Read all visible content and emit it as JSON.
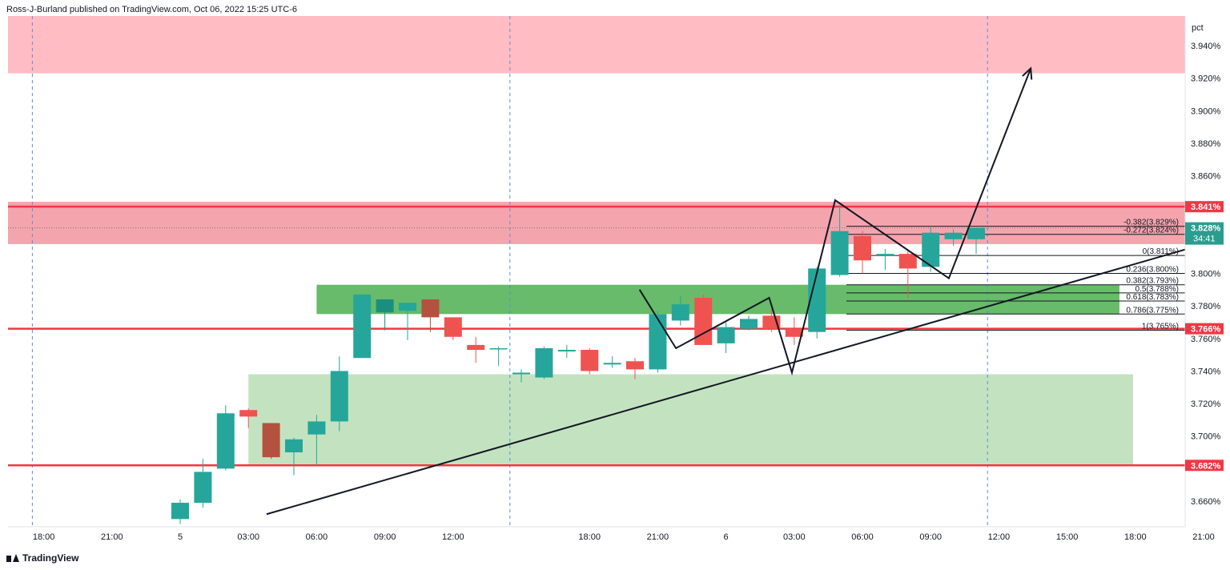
{
  "header": {
    "publisher_line": "Ross-J-Burland published on TradingView.com, Oct 06, 2022 15:25 UTC-6"
  },
  "footer": {
    "brand": "TradingView"
  },
  "colors": {
    "up": "#26a69a",
    "down": "#ef5350",
    "up_dim": "#1b8f7f",
    "down_dim": "#b5513f",
    "gray": "#787b86",
    "hline": "#f23645",
    "zone_top": "#ffbcc3",
    "zone_res": "#f4a4ad",
    "zone_green_dark": "#4caf50",
    "zone_green_light": "#c3e3c0",
    "fib": "#131722"
  },
  "chart_data": {
    "type": "candlestick",
    "symbol_unit": "pct",
    "ylim": [
      3.645,
      3.965
    ],
    "y_ticks": [
      "3.940%",
      "3.920%",
      "3.900%",
      "3.880%",
      "3.860%",
      "3.800%",
      "3.780%",
      "3.760%",
      "3.740%",
      "3.720%",
      "3.700%",
      "3.660%"
    ],
    "y_tick_values": [
      3.94,
      3.92,
      3.9,
      3.88,
      3.86,
      3.8,
      3.78,
      3.76,
      3.74,
      3.72,
      3.7,
      3.66
    ],
    "x_tick_labels": [
      "18:00",
      "21:00",
      "5",
      "03:00",
      "06:00",
      "09:00",
      "12:00",
      "18:00",
      "21:00",
      "6",
      "03:00",
      "06:00",
      "09:00",
      "12:00",
      "15:00",
      "18:00",
      "21:00"
    ],
    "x_tick_hours": [
      -6,
      -3,
      0,
      3,
      6,
      9,
      12,
      18,
      21,
      24,
      27,
      30,
      33,
      36,
      39,
      42,
      45
    ],
    "session_separators_hours": [
      -6.5,
      14.5,
      35.5
    ],
    "candles": [
      {
        "t": 0,
        "o": 3.649,
        "h": 3.661,
        "l": 3.646,
        "c": 3.659,
        "s": "up"
      },
      {
        "t": 1,
        "o": 3.659,
        "h": 3.686,
        "l": 3.656,
        "c": 3.678,
        "s": "up"
      },
      {
        "t": 2,
        "o": 3.68,
        "h": 3.719,
        "l": 3.679,
        "c": 3.714,
        "s": "up"
      },
      {
        "t": 3,
        "o": 3.716,
        "h": 3.717,
        "l": 3.705,
        "c": 3.712,
        "s": "down"
      },
      {
        "t": 4,
        "o": 3.708,
        "h": 3.708,
        "l": 3.686,
        "c": 3.687,
        "s": "down_dim"
      },
      {
        "t": 5,
        "o": 3.69,
        "h": 3.699,
        "l": 3.676,
        "c": 3.698,
        "s": "up"
      },
      {
        "t": 6,
        "o": 3.701,
        "h": 3.713,
        "l": 3.682,
        "c": 3.709,
        "s": "up"
      },
      {
        "t": 7,
        "o": 3.709,
        "h": 3.749,
        "l": 3.703,
        "c": 3.74,
        "s": "up"
      },
      {
        "t": 8,
        "o": 3.748,
        "h": 3.787,
        "l": 3.748,
        "c": 3.787,
        "s": "up"
      },
      {
        "t": 9,
        "o": 3.776,
        "h": 3.783,
        "l": 3.765,
        "c": 3.784,
        "s": "up_dim"
      },
      {
        "t": 10,
        "o": 3.777,
        "h": 3.782,
        "l": 3.759,
        "c": 3.782,
        "s": "up"
      },
      {
        "t": 11,
        "o": 3.784,
        "h": 3.784,
        "l": 3.764,
        "c": 3.773,
        "s": "down_dim"
      },
      {
        "t": 12,
        "o": 3.773,
        "h": 3.773,
        "l": 3.759,
        "c": 3.761,
        "s": "down"
      },
      {
        "t": 13,
        "o": 3.756,
        "h": 3.761,
        "l": 3.745,
        "c": 3.753,
        "s": "down"
      },
      {
        "t": 14,
        "o": 3.754,
        "h": 3.755,
        "l": 3.743,
        "c": 3.754,
        "s": "up"
      },
      {
        "t": 15,
        "o": 3.738,
        "h": 3.741,
        "l": 3.733,
        "c": 3.739,
        "s": "up"
      },
      {
        "t": 16,
        "o": 3.736,
        "h": 3.755,
        "l": 3.735,
        "c": 3.754,
        "s": "up"
      },
      {
        "t": 17,
        "o": 3.752,
        "h": 3.756,
        "l": 3.748,
        "c": 3.753,
        "s": "up"
      },
      {
        "t": 18,
        "o": 3.753,
        "h": 3.754,
        "l": 3.738,
        "c": 3.74,
        "s": "down"
      },
      {
        "t": 19,
        "o": 3.745,
        "h": 3.749,
        "l": 3.742,
        "c": 3.744,
        "s": "up"
      },
      {
        "t": 20,
        "o": 3.746,
        "h": 3.748,
        "l": 3.735,
        "c": 3.741,
        "s": "down"
      },
      {
        "t": 21,
        "o": 3.741,
        "h": 3.777,
        "l": 3.739,
        "c": 3.775,
        "s": "up"
      },
      {
        "t": 22,
        "o": 3.771,
        "h": 3.786,
        "l": 3.768,
        "c": 3.781,
        "s": "up"
      },
      {
        "t": 23,
        "o": 3.785,
        "h": 3.787,
        "l": 3.756,
        "c": 3.756,
        "s": "down"
      },
      {
        "t": 24,
        "o": 3.757,
        "h": 3.771,
        "l": 3.751,
        "c": 3.767,
        "s": "up"
      },
      {
        "t": 25,
        "o": 3.766,
        "h": 3.774,
        "l": 3.765,
        "c": 3.772,
        "s": "up"
      },
      {
        "t": 26,
        "o": 3.774,
        "h": 3.778,
        "l": 3.764,
        "c": 3.766,
        "s": "down"
      },
      {
        "t": 27,
        "o": 3.766,
        "h": 3.773,
        "l": 3.756,
        "c": 3.761,
        "s": "down"
      },
      {
        "t": 28,
        "o": 3.764,
        "h": 3.804,
        "l": 3.76,
        "c": 3.803,
        "s": "up"
      },
      {
        "t": 29,
        "o": 3.799,
        "h": 3.842,
        "l": 3.798,
        "c": 3.826,
        "s": "up"
      },
      {
        "t": 30,
        "o": 3.823,
        "h": 3.826,
        "l": 3.8,
        "c": 3.808,
        "s": "down"
      },
      {
        "t": 31,
        "o": 3.811,
        "h": 3.815,
        "l": 3.802,
        "c": 3.812,
        "s": "up"
      },
      {
        "t": 32,
        "o": 3.812,
        "h": 3.814,
        "l": 3.785,
        "c": 3.803,
        "s": "down"
      },
      {
        "t": 33,
        "o": 3.804,
        "h": 3.829,
        "l": 3.801,
        "c": 3.825,
        "s": "up"
      },
      {
        "t": 34,
        "o": 3.821,
        "h": 3.827,
        "l": 3.817,
        "c": 3.825,
        "s": "up"
      },
      {
        "t": 35,
        "o": 3.821,
        "h": 3.828,
        "l": 3.812,
        "c": 3.828,
        "s": "up"
      }
    ],
    "horizontal_lines": [
      {
        "value": 3.841,
        "label": "3.841%"
      },
      {
        "value": 3.766,
        "label": "3.766%"
      },
      {
        "value": 3.682,
        "label": "3.682%"
      }
    ],
    "last_price": {
      "value": 3.828,
      "label": "3.828%",
      "countdown": "34:41"
    },
    "zones": [
      {
        "name": "supply-zone-top",
        "y1": 3.923,
        "y2": 3.965,
        "x1_hours": -8,
        "x2_hours": 48,
        "color": "zone_top"
      },
      {
        "name": "resistance-zone",
        "y1": 3.818,
        "y2": 3.844,
        "x1_hours": -8,
        "x2_hours": 48,
        "color": "zone_res"
      },
      {
        "name": "demand-zone-upper",
        "y1": 3.775,
        "y2": 3.793,
        "x1_hours": 6,
        "x2_hours": 41.3,
        "color": "zone_green_dark"
      },
      {
        "name": "demand-zone-lower",
        "y1": 3.682,
        "y2": 3.738,
        "x1_hours": 3,
        "x2_hours": 41.9,
        "color": "zone_green_light"
      }
    ],
    "fib_levels": [
      {
        "ratio_label": "-0.382(3.829%)",
        "value": 3.829
      },
      {
        "ratio_label": "-0.272(3.824%)",
        "value": 3.824
      },
      {
        "ratio_label": "0(3.811%)",
        "value": 3.811
      },
      {
        "ratio_label": "0.236(3.800%)",
        "value": 3.8
      },
      {
        "ratio_label": "0.382(3.793%)",
        "value": 3.793
      },
      {
        "ratio_label": "0.5(3.788%)",
        "value": 3.788
      },
      {
        "ratio_label": "0.618(3.783%)",
        "value": 3.783
      },
      {
        "ratio_label": "0.786(3.775%)",
        "value": 3.775
      },
      {
        "ratio_label": "1(3.765%)",
        "value": 3.765
      }
    ],
    "fib_x_hours": [
      30,
      46.5
    ],
    "trendline": {
      "p1": [
        3.8,
        3.652
      ],
      "p2": [
        47.5,
        3.828
      ]
    },
    "zigzag_path": [
      [
        20.2,
        3.79
      ],
      [
        21.8,
        3.754
      ],
      [
        25.9,
        3.785
      ],
      [
        26.9,
        3.739
      ],
      [
        28.8,
        3.845
      ],
      [
        33.8,
        3.797
      ],
      [
        37.4,
        3.926
      ]
    ],
    "zigzag_arrow_end_index": 6
  }
}
